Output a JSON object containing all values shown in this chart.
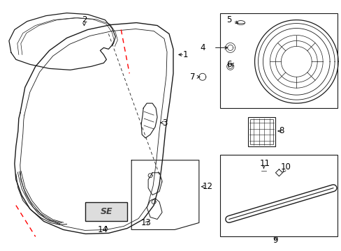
{
  "background_color": "#ffffff",
  "line_color": "#1a1a1a",
  "red_color": "#ff0000",
  "label_fontsize": 8.5,
  "figsize": [
    4.89,
    3.6
  ],
  "dpi": 100
}
